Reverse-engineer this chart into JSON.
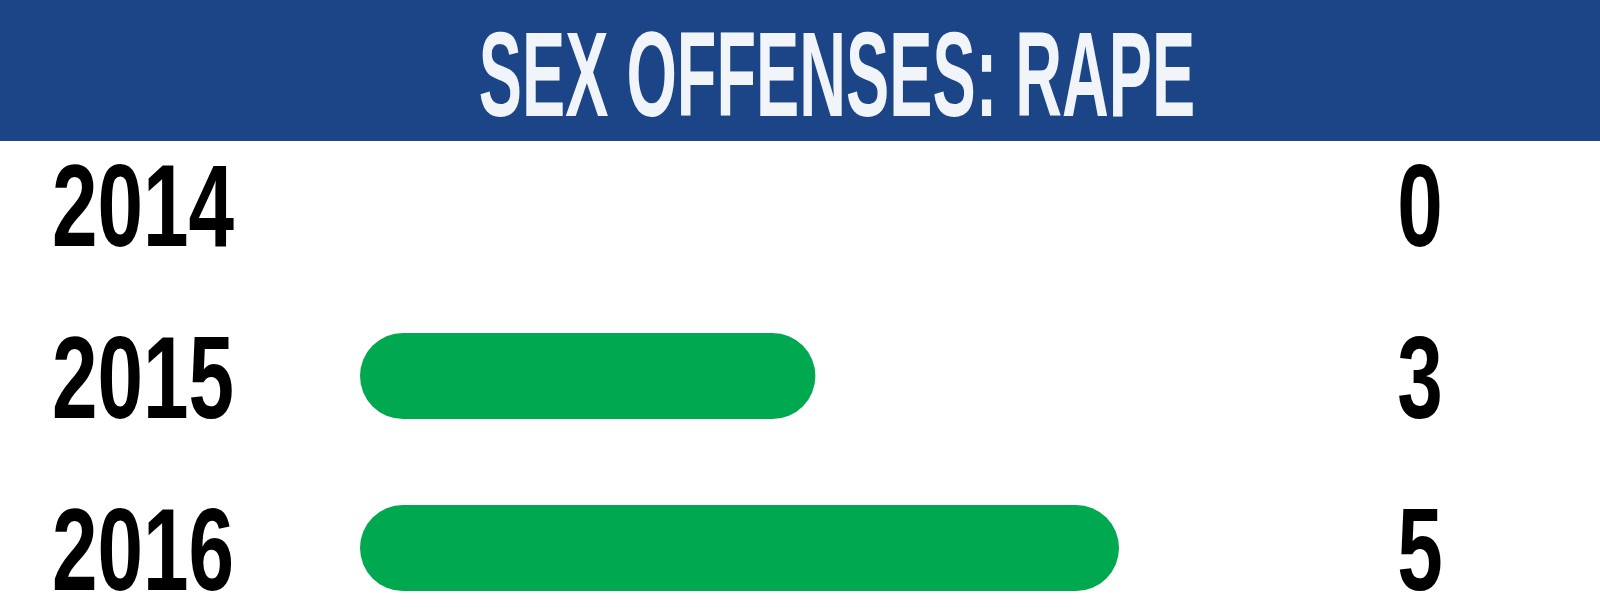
{
  "chart_data": {
    "type": "bar",
    "orientation": "horizontal",
    "title": "SEX OFFENSES: RAPE",
    "categories": [
      "2014",
      "2015",
      "2016"
    ],
    "values": [
      0,
      3,
      5
    ],
    "color": "#00a84f",
    "data_labels": true
  }
}
